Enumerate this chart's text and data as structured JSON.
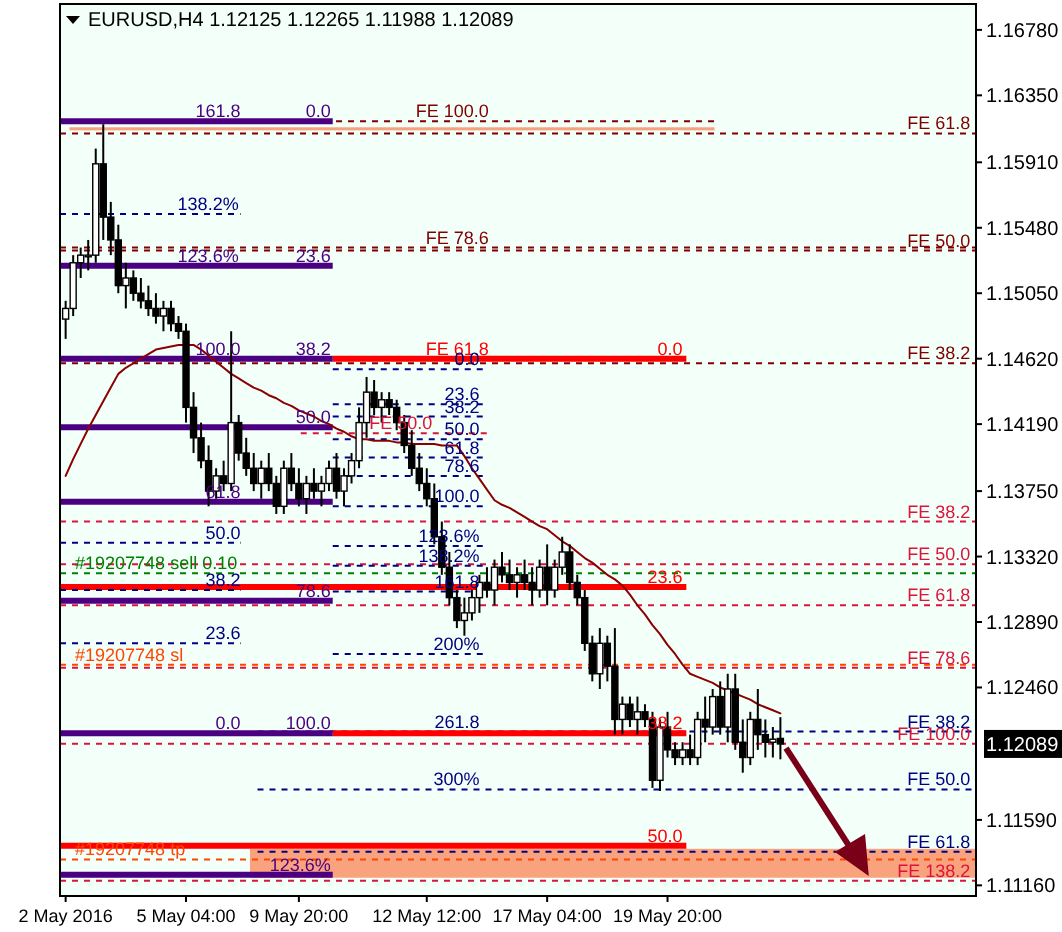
{
  "chart_data": {
    "type": "candlestick",
    "title": "EURUSD,H4 1.12125 1.12265 1.11988 1.12089",
    "categories": [
      "2 May 2016",
      null,
      null,
      null,
      null,
      null,
      null,
      null,
      null,
      null,
      null,
      null,
      null,
      null,
      null,
      null,
      "5 May 04:00",
      null,
      null,
      null,
      null,
      null,
      null,
      null,
      null,
      null,
      null,
      null,
      null,
      null,
      null,
      "9 May 20:00",
      null,
      null,
      null,
      null,
      null,
      null,
      null,
      null,
      null,
      null,
      null,
      null,
      null,
      null,
      null,
      null,
      "12 May 12:00",
      null,
      null,
      null,
      null,
      null,
      null,
      null,
      null,
      null,
      null,
      null,
      null,
      null,
      null,
      null,
      "17 May 04:00",
      null,
      null,
      null,
      null,
      null,
      null,
      null,
      null,
      null,
      null,
      null,
      null,
      null,
      null,
      null,
      "19 May 20:00",
      null,
      null,
      null,
      null,
      null,
      null,
      null,
      null,
      null,
      null,
      null,
      null,
      null,
      null,
      null
    ],
    "ohlc": [
      [
        1.1488,
        1.15,
        1.1475,
        1.1495
      ],
      [
        1.1495,
        1.153,
        1.149,
        1.1525
      ],
      [
        1.1525,
        1.1535,
        1.1515,
        1.153
      ],
      [
        1.153,
        1.154,
        1.152,
        1.153
      ],
      [
        1.153,
        1.16,
        1.1525,
        1.159
      ],
      [
        1.159,
        1.1616,
        1.154,
        1.1555
      ],
      [
        1.1555,
        1.1565,
        1.153,
        1.154
      ],
      [
        1.154,
        1.155,
        1.1505,
        1.151
      ],
      [
        1.151,
        1.1525,
        1.1495,
        1.1515
      ],
      [
        1.1515,
        1.152,
        1.15,
        1.1505
      ],
      [
        1.1505,
        1.1515,
        1.1495,
        1.15
      ],
      [
        1.15,
        1.151,
        1.149,
        1.1495
      ],
      [
        1.1495,
        1.1505,
        1.1485,
        1.149
      ],
      [
        1.149,
        1.15,
        1.148,
        1.1495
      ],
      [
        1.1495,
        1.15,
        1.148,
        1.1485
      ],
      [
        1.1485,
        1.149,
        1.1475,
        1.148
      ],
      [
        1.148,
        1.1485,
        1.142,
        1.143
      ],
      [
        1.143,
        1.144,
        1.14,
        1.141
      ],
      [
        1.141,
        1.142,
        1.139,
        1.1395
      ],
      [
        1.1395,
        1.1405,
        1.1365,
        1.1375
      ],
      [
        1.1375,
        1.139,
        1.137,
        1.1385
      ],
      [
        1.1385,
        1.1395,
        1.1375,
        1.138
      ],
      [
        1.138,
        1.148,
        1.1375,
        1.142
      ],
      [
        1.142,
        1.1425,
        1.1395,
        1.14
      ],
      [
        1.14,
        1.141,
        1.1385,
        1.139
      ],
      [
        1.139,
        1.14,
        1.1375,
        1.138
      ],
      [
        1.138,
        1.1395,
        1.137,
        1.139
      ],
      [
        1.139,
        1.14,
        1.1375,
        1.138
      ],
      [
        1.138,
        1.1385,
        1.136,
        1.1365
      ],
      [
        1.1365,
        1.1395,
        1.136,
        1.139
      ],
      [
        1.139,
        1.14,
        1.1375,
        1.138
      ],
      [
        1.138,
        1.139,
        1.1365,
        1.137
      ],
      [
        1.137,
        1.1385,
        1.136,
        1.138
      ],
      [
        1.138,
        1.139,
        1.137,
        1.1375
      ],
      [
        1.1375,
        1.1385,
        1.1365,
        1.138
      ],
      [
        1.138,
        1.1395,
        1.1375,
        1.139
      ],
      [
        1.139,
        1.14,
        1.137,
        1.1375
      ],
      [
        1.1375,
        1.139,
        1.1365,
        1.1385
      ],
      [
        1.1385,
        1.14,
        1.138,
        1.1395
      ],
      [
        1.1395,
        1.143,
        1.139,
        1.142
      ],
      [
        1.142,
        1.145,
        1.141,
        1.144
      ],
      [
        1.144,
        1.1448,
        1.1425,
        1.143
      ],
      [
        1.143,
        1.144,
        1.142,
        1.1435
      ],
      [
        1.1435,
        1.144,
        1.1425,
        1.143
      ],
      [
        1.143,
        1.1435,
        1.1415,
        1.142
      ],
      [
        1.142,
        1.1425,
        1.14,
        1.1405
      ],
      [
        1.1405,
        1.1415,
        1.1385,
        1.139
      ],
      [
        1.139,
        1.14,
        1.1375,
        1.138
      ],
      [
        1.138,
        1.139,
        1.1365,
        1.137
      ],
      [
        1.137,
        1.138,
        1.134,
        1.1345
      ],
      [
        1.1345,
        1.1355,
        1.132,
        1.1325
      ],
      [
        1.1325,
        1.1335,
        1.13,
        1.1305
      ],
      [
        1.1305,
        1.131,
        1.1285,
        1.129
      ],
      [
        1.129,
        1.1305,
        1.128,
        1.1295
      ],
      [
        1.1295,
        1.131,
        1.129,
        1.1305
      ],
      [
        1.1305,
        1.132,
        1.1295,
        1.1315
      ],
      [
        1.1315,
        1.1325,
        1.1305,
        1.131
      ],
      [
        1.131,
        1.133,
        1.13,
        1.1325
      ],
      [
        1.1325,
        1.1335,
        1.1315,
        1.132
      ],
      [
        1.132,
        1.133,
        1.131,
        1.1315
      ],
      [
        1.1315,
        1.1325,
        1.1305,
        1.132
      ],
      [
        1.132,
        1.133,
        1.131,
        1.1315
      ],
      [
        1.1315,
        1.1325,
        1.13,
        1.131
      ],
      [
        1.131,
        1.133,
        1.1305,
        1.1325
      ],
      [
        1.1325,
        1.134,
        1.13,
        1.131
      ],
      [
        1.131,
        1.133,
        1.1305,
        1.1325
      ],
      [
        1.1325,
        1.1345,
        1.132,
        1.1335
      ],
      [
        1.1335,
        1.134,
        1.131,
        1.1315
      ],
      [
        1.1315,
        1.132,
        1.13,
        1.1305
      ],
      [
        1.1305,
        1.131,
        1.127,
        1.1275
      ],
      [
        1.1275,
        1.128,
        1.125,
        1.1255
      ],
      [
        1.1255,
        1.1285,
        1.1245,
        1.1275
      ],
      [
        1.1275,
        1.128,
        1.125,
        1.126
      ],
      [
        1.126,
        1.1285,
        1.1215,
        1.1225
      ],
      [
        1.1225,
        1.124,
        1.1215,
        1.1235
      ],
      [
        1.1235,
        1.124,
        1.122,
        1.1225
      ],
      [
        1.1225,
        1.124,
        1.1215,
        1.123
      ],
      [
        1.123,
        1.1235,
        1.122,
        1.1225
      ],
      [
        1.1225,
        1.123,
        1.118,
        1.1185
      ],
      [
        1.1185,
        1.1225,
        1.1178,
        1.122
      ],
      [
        1.122,
        1.123,
        1.12,
        1.1205
      ],
      [
        1.1205,
        1.121,
        1.1195,
        1.12
      ],
      [
        1.12,
        1.121,
        1.1195,
        1.1205
      ],
      [
        1.1205,
        1.1215,
        1.1195,
        1.12
      ],
      [
        1.12,
        1.123,
        1.1195,
        1.1225
      ],
      [
        1.1225,
        1.124,
        1.121,
        1.122
      ],
      [
        1.122,
        1.1245,
        1.1215,
        1.124
      ],
      [
        1.124,
        1.125,
        1.1215,
        1.122
      ],
      [
        1.122,
        1.1255,
        1.121,
        1.1245
      ],
      [
        1.1245,
        1.1255,
        1.1205,
        1.121
      ],
      [
        1.121,
        1.1225,
        1.119,
        1.12
      ],
      [
        1.12,
        1.123,
        1.1195,
        1.1225
      ],
      [
        1.1225,
        1.1245,
        1.1205,
        1.1215
      ],
      [
        1.1215,
        1.1225,
        1.12,
        1.121
      ],
      [
        1.121,
        1.122,
        1.12,
        1.1212
      ],
      [
        1.12125,
        1.12265,
        1.11988,
        1.12089
      ]
    ],
    "series": [
      {
        "type": "line",
        "color": "#8b0000",
        "values": [
          1.1385,
          1.1396,
          1.1406,
          1.1416,
          1.1425,
          1.1434,
          1.1443,
          1.1452,
          1.1456,
          1.1459,
          1.1462,
          1.1465,
          1.1468,
          1.1469,
          1.147,
          1.1471,
          1.1471,
          1.1471,
          1.1468,
          1.1464,
          1.146,
          1.1456,
          1.1452,
          1.1449,
          1.1446,
          1.1443,
          1.1441,
          1.1438,
          1.1436,
          1.1433,
          1.1431,
          1.1428,
          1.1426,
          1.1424,
          1.1421,
          1.1419,
          1.1416,
          1.1414,
          1.1411,
          1.1409,
          1.1409,
          1.1408,
          1.1408,
          1.1408,
          1.1407,
          1.1407,
          1.1406,
          1.1406,
          1.1406,
          1.1406,
          1.1405,
          1.1405,
          1.1405,
          1.1398,
          1.139,
          1.1383,
          1.1376,
          1.1369,
          1.1366,
          1.1364,
          1.1361,
          1.1358,
          1.1355,
          1.1352,
          1.135,
          1.1346,
          1.1342,
          1.1339,
          1.1335,
          1.1331,
          1.1328,
          1.1324,
          1.132,
          1.1317,
          1.1313,
          1.1307,
          1.13,
          1.1294,
          1.1287,
          1.1281,
          1.1274,
          1.1268,
          1.1261,
          1.1255,
          1.1253,
          1.1251,
          1.1249,
          1.1246,
          1.1244,
          1.1242,
          1.124,
          1.1238,
          1.1235,
          1.1233,
          1.1231,
          1.1229
        ]
      }
    ],
    "ylim": [
      1.1109,
      1.1695
    ],
    "yticks": [
      {
        "value": 1.1678,
        "label": "1.16780"
      },
      {
        "value": 1.1635,
        "label": "1.16350"
      },
      {
        "value": 1.1591,
        "label": "1.15910"
      },
      {
        "value": 1.1548,
        "label": "1.15480"
      },
      {
        "value": 1.1505,
        "label": "1.15050"
      },
      {
        "value": 1.1462,
        "label": "1.14620"
      },
      {
        "value": 1.1419,
        "label": "1.14190"
      },
      {
        "value": 1.1375,
        "label": "1.13750"
      },
      {
        "value": 1.1332,
        "label": "1.13320"
      },
      {
        "value": 1.1289,
        "label": "1.12890"
      },
      {
        "value": 1.1246,
        "label": "1.12460"
      },
      {
        "value": 1.1159,
        "label": "1.11590"
      },
      {
        "value": 1.1116,
        "label": "1.11160"
      }
    ],
    "bands": [
      {
        "axis": "y",
        "from": 1.1612,
        "to": 1.1614,
        "color": "#f7a27c"
      },
      {
        "axis": "y",
        "from": 1.1121,
        "to": 1.114,
        "color": "#f9a27e"
      }
    ],
    "ref_lines": [
      {
        "axis": "y",
        "value": 1.1618,
        "label": "FE 100.0",
        "color": "#800000",
        "line_style": "dashed"
      },
      {
        "axis": "y",
        "value": 1.161,
        "label": "FE 61.8",
        "color": "#800000",
        "line_style": "dashed"
      },
      {
        "axis": "y",
        "value": 1.1535,
        "label": "FE 78.6",
        "color": "#800000",
        "line_style": "dashed"
      },
      {
        "axis": "y",
        "value": 1.1533,
        "label": "FE 50.0",
        "color": "#800000",
        "line_style": "dashed"
      },
      {
        "axis": "y",
        "value": 1.1459,
        "label": "FE 38.2",
        "color": "#800000",
        "line_style": "dashed"
      },
      {
        "axis": "y",
        "value": 1.1462,
        "label": "FE 61.8",
        "color": "#ff0000",
        "line_style": "solid"
      },
      {
        "axis": "y",
        "value": 1.1413,
        "label": "FE 50.0",
        "color": "#dc143c",
        "line_style": "dashed"
      },
      {
        "axis": "y",
        "value": 1.1355,
        "label": "FE 38.2",
        "color": "#dc143c",
        "line_style": "dashed"
      },
      {
        "axis": "y",
        "value": 1.1327,
        "label": "FE 50.0",
        "color": "#dc143c",
        "line_style": "dashed"
      },
      {
        "axis": "y",
        "value": 1.1321,
        "label": "#19207748 sell 0.10",
        "color": "#008000",
        "line_style": "dashed"
      },
      {
        "axis": "y",
        "value": 1.1312,
        "color": "#ff0000",
        "line_style": "solid"
      },
      {
        "axis": "y",
        "value": 1.13,
        "label": "FE 61.8",
        "color": "#dc143c",
        "line_style": "dashed"
      },
      {
        "axis": "y",
        "value": 1.1261,
        "label": "#19207748 sl",
        "color": "#ff4500",
        "line_style": "dashed"
      },
      {
        "axis": "y",
        "value": 1.1259,
        "label": "FE 78.6",
        "color": "#dc143c",
        "line_style": "dashed"
      },
      {
        "axis": "y",
        "value": 1.1217,
        "label": "FE 38.2",
        "color": "#000080",
        "line_style": "dashed"
      },
      {
        "axis": "y",
        "value": 1.1216,
        "color": "#ff0000",
        "line_style": "solid"
      },
      {
        "axis": "y",
        "value": 1.1209,
        "label": "FE 100.0",
        "color": "#dc143c",
        "line_style": "dashed"
      },
      {
        "axis": "y",
        "value": 1.1179,
        "label": "FE 50.0",
        "color": "#000080",
        "line_style": "dashed"
      },
      {
        "axis": "y",
        "value": 1.1142,
        "color": "#ff0000",
        "line_style": "solid"
      },
      {
        "axis": "y",
        "value": 1.1138,
        "label": "FE 61.8",
        "color": "#000080",
        "line_style": "dashed"
      },
      {
        "axis": "y",
        "value": 1.1133,
        "label": "#19207748 tp",
        "color": "#ff4500",
        "line_style": "dashed"
      },
      {
        "axis": "y",
        "value": 1.1119,
        "label": "FE 138.2",
        "color": "#dc143c",
        "line_style": "dashed"
      },
      {
        "axis": "y",
        "value": 1.1618,
        "color": "#4b0082",
        "line_style": "solid"
      },
      {
        "axis": "y",
        "value": 1.1523,
        "color": "#4b0082",
        "line_style": "solid"
      },
      {
        "axis": "y",
        "value": 1.1462,
        "color": "#4b0082",
        "line_style": "solid"
      },
      {
        "axis": "y",
        "value": 1.1417,
        "color": "#4b0082",
        "line_style": "solid"
      },
      {
        "axis": "y",
        "value": 1.1368,
        "color": "#4b0082",
        "line_style": "solid"
      },
      {
        "axis": "y",
        "value": 1.1303,
        "color": "#4b0082",
        "line_style": "solid"
      },
      {
        "axis": "y",
        "value": 1.1216,
        "color": "#4b0082",
        "line_style": "solid"
      },
      {
        "axis": "y",
        "value": 1.1123,
        "color": "#4b0082",
        "line_style": "solid"
      },
      {
        "axis": "y",
        "value": 1.1557,
        "color": "#000080",
        "line_style": "dashed"
      },
      {
        "axis": "y",
        "value": 1.1341,
        "color": "#000080",
        "line_style": "dashed"
      },
      {
        "axis": "y",
        "value": 1.131,
        "color": "#000080",
        "line_style": "dashed"
      },
      {
        "axis": "y",
        "value": 1.1275,
        "color": "#000080",
        "line_style": "dashed"
      },
      {
        "axis": "y",
        "value": 1.1455,
        "color": "#000080",
        "line_style": "dashed"
      },
      {
        "axis": "y",
        "value": 1.1432,
        "color": "#000080",
        "line_style": "dashed"
      },
      {
        "axis": "y",
        "value": 1.1424,
        "color": "#000080",
        "line_style": "dashed"
      },
      {
        "axis": "y",
        "value": 1.1409,
        "color": "#000080",
        "line_style": "dashed"
      },
      {
        "axis": "y",
        "value": 1.1397,
        "color": "#000080",
        "line_style": "dashed"
      },
      {
        "axis": "y",
        "value": 1.1385,
        "color": "#000080",
        "line_style": "dashed"
      },
      {
        "axis": "y",
        "value": 1.1365,
        "color": "#000080",
        "line_style": "dashed"
      },
      {
        "axis": "y",
        "value": 1.1339,
        "color": "#000080",
        "line_style": "dashed"
      },
      {
        "axis": "y",
        "value": 1.1326,
        "color": "#000080",
        "line_style": "dashed"
      },
      {
        "axis": "y",
        "value": 1.1309,
        "color": "#000080",
        "line_style": "dashed"
      },
      {
        "axis": "y",
        "value": 1.1268,
        "color": "#000080",
        "line_style": "dashed"
      }
    ],
    "annotations": [
      "0.0",
      "0.0",
      "23.6",
      "38.2",
      "100.0",
      "23.6",
      "38.2",
      "50.0",
      "161.8",
      "123.6%",
      "100.0",
      "50.0",
      "61.8",
      "78.6",
      "0.0",
      "123.6%",
      "138.2%",
      "50.0",
      "38.2",
      "23.6",
      "0.0",
      "23.6",
      "38.2",
      "50.0",
      "61.8",
      "78.6",
      "100.0",
      "123.6%",
      "138.2%",
      "161.8",
      "200%",
      "261.8",
      "300%",
      "1.12089"
    ]
  }
}
